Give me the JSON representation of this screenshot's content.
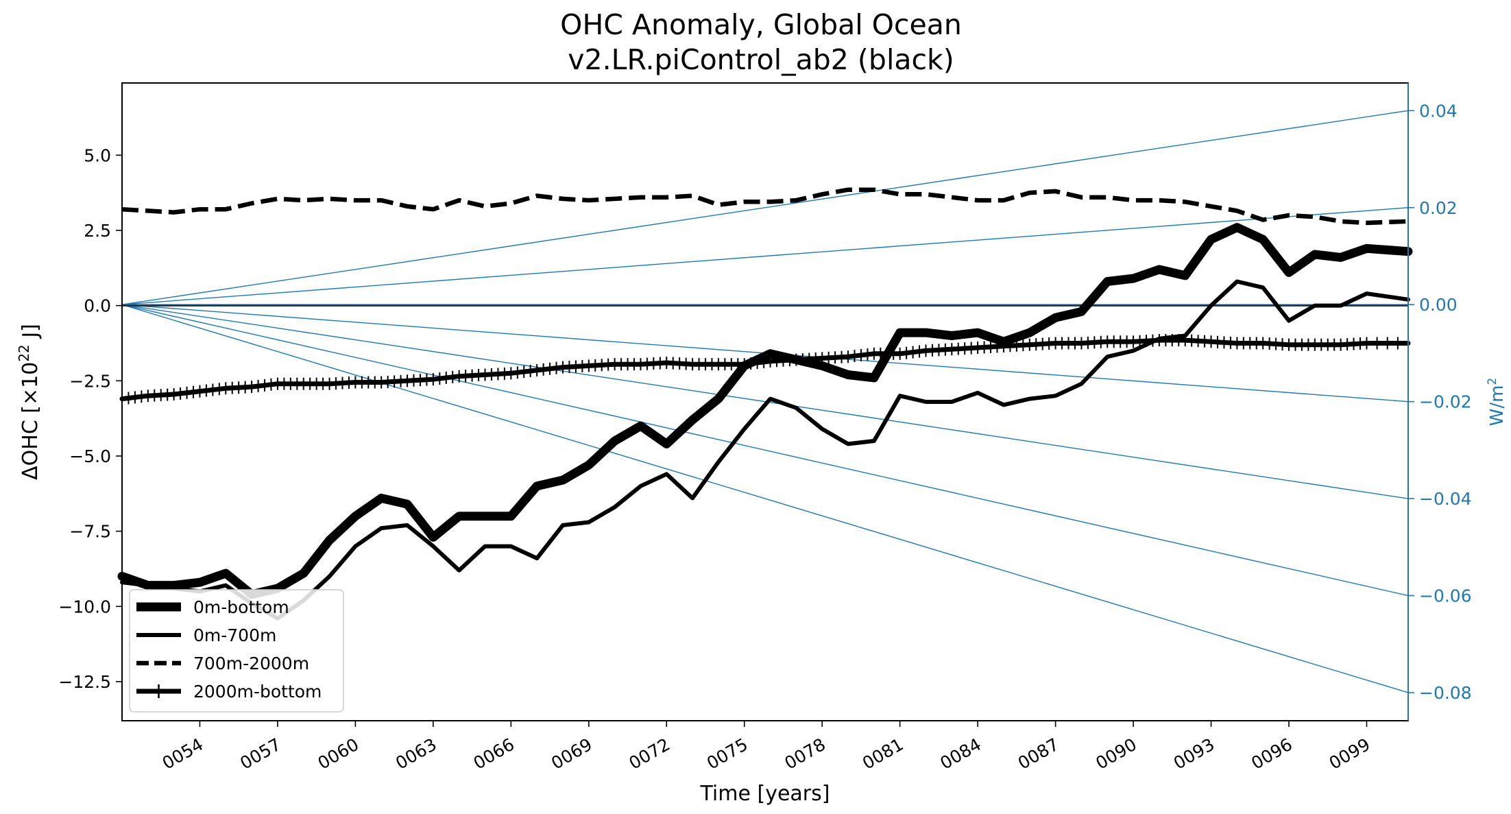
{
  "chart_data": {
    "type": "line",
    "title_line1": "OHC Anomaly, Global Ocean",
    "title_line2": "v2.LR.piControl_ab2 (black)",
    "xlabel": "Time [years]",
    "ylabel": "ΔOHC [×10",
    "ylabel_exp": "22",
    "ylabel_unit": " J]",
    "ylabel_right": "W/m",
    "ylabel_right_exp": "2",
    "xlim": [
      51.0,
      100.6
    ],
    "ylim": [
      -13.8,
      7.4
    ],
    "ylim_right": [
      -0.0858,
      0.0457
    ],
    "grid": false,
    "legend_position": "lower-left",
    "x_ticks": [
      {
        "value": 54,
        "label": "0054"
      },
      {
        "value": 57,
        "label": "0057"
      },
      {
        "value": 60,
        "label": "0060"
      },
      {
        "value": 63,
        "label": "0063"
      },
      {
        "value": 66,
        "label": "0066"
      },
      {
        "value": 69,
        "label": "0069"
      },
      {
        "value": 72,
        "label": "0072"
      },
      {
        "value": 75,
        "label": "0075"
      },
      {
        "value": 78,
        "label": "0078"
      },
      {
        "value": 81,
        "label": "0081"
      },
      {
        "value": 84,
        "label": "0084"
      },
      {
        "value": 87,
        "label": "0087"
      },
      {
        "value": 90,
        "label": "0090"
      },
      {
        "value": 93,
        "label": "0093"
      },
      {
        "value": 96,
        "label": "0096"
      },
      {
        "value": 99,
        "label": "0099"
      }
    ],
    "y_ticks": [
      {
        "value": 5.0,
        "label": "5.0"
      },
      {
        "value": 2.5,
        "label": "2.5"
      },
      {
        "value": 0.0,
        "label": "0.0"
      },
      {
        "value": -2.5,
        "label": "−2.5"
      },
      {
        "value": -5.0,
        "label": "−5.0"
      },
      {
        "value": -7.5,
        "label": "−7.5"
      },
      {
        "value": -10.0,
        "label": "−10.0"
      },
      {
        "value": -12.5,
        "label": "−12.5"
      }
    ],
    "y_ticks_right": [
      {
        "value": 0.04,
        "label": "0.04"
      },
      {
        "value": 0.02,
        "label": "0.02"
      },
      {
        "value": 0.0,
        "label": "0.00"
      },
      {
        "value": -0.02,
        "label": "−0.02"
      },
      {
        "value": -0.04,
        "label": "−0.04"
      },
      {
        "value": -0.06,
        "label": "−0.06"
      },
      {
        "value": -0.08,
        "label": "−0.08"
      }
    ],
    "reference_lines": {
      "color": "#1f77b4",
      "origin_x": 51.0,
      "end_x": 100.6,
      "end_values_right_axis": [
        0.04,
        0.02,
        0.0,
        -0.02,
        -0.04,
        -0.06,
        -0.08
      ]
    },
    "series": [
      {
        "name": "0m-bottom",
        "color": "#000000",
        "style": "thick",
        "x": [
          51,
          52,
          53,
          54,
          55,
          56,
          57,
          58,
          59,
          60,
          61,
          62,
          63,
          64,
          65,
          66,
          67,
          68,
          69,
          70,
          71,
          72,
          73,
          74,
          75,
          76,
          77,
          78,
          79,
          80,
          81,
          82,
          83,
          84,
          85,
          86,
          87,
          88,
          89,
          90,
          91,
          92,
          93,
          94,
          95,
          96,
          97,
          98,
          99,
          100.6
        ],
        "y": [
          -9.0,
          -9.3,
          -9.3,
          -9.2,
          -8.9,
          -9.6,
          -9.4,
          -8.9,
          -7.8,
          -7.0,
          -6.4,
          -6.6,
          -7.7,
          -7.0,
          -7.0,
          -7.0,
          -6.0,
          -5.8,
          -5.3,
          -4.5,
          -4.0,
          -4.6,
          -3.8,
          -3.1,
          -2.0,
          -1.6,
          -1.8,
          -2.0,
          -2.3,
          -2.4,
          -0.9,
          -0.9,
          -1.0,
          -0.9,
          -1.2,
          -0.9,
          -0.4,
          -0.2,
          0.8,
          0.9,
          1.2,
          1.0,
          2.2,
          2.6,
          2.2,
          1.1,
          1.7,
          1.6,
          1.9,
          1.8
        ]
      },
      {
        "name": "0m-700m",
        "color": "#000000",
        "style": "solid",
        "x": [
          51,
          52,
          53,
          54,
          55,
          56,
          57,
          58,
          59,
          60,
          61,
          62,
          63,
          64,
          65,
          66,
          67,
          68,
          69,
          70,
          71,
          72,
          73,
          74,
          75,
          76,
          77,
          78,
          79,
          80,
          81,
          82,
          83,
          84,
          85,
          86,
          87,
          88,
          89,
          90,
          91,
          92,
          93,
          94,
          95,
          96,
          97,
          98,
          99,
          100.6
        ],
        "y": [
          -9.2,
          -9.3,
          -9.4,
          -9.5,
          -9.3,
          -9.9,
          -10.4,
          -9.8,
          -9.0,
          -8.0,
          -7.4,
          -7.3,
          -8.0,
          -8.8,
          -8.0,
          -8.0,
          -8.4,
          -7.3,
          -7.2,
          -6.7,
          -6.0,
          -5.6,
          -6.4,
          -5.2,
          -4.1,
          -3.1,
          -3.4,
          -4.1,
          -4.6,
          -4.5,
          -3.0,
          -3.2,
          -3.2,
          -2.9,
          -3.3,
          -3.1,
          -3.0,
          -2.6,
          -1.7,
          -1.5,
          -1.1,
          -1.0,
          0.0,
          0.8,
          0.6,
          -0.5,
          0.0,
          0.0,
          0.4,
          0.2
        ]
      },
      {
        "name": "700m-2000m",
        "color": "#000000",
        "style": "dashed",
        "x": [
          51,
          52,
          53,
          54,
          55,
          56,
          57,
          58,
          59,
          60,
          61,
          62,
          63,
          64,
          65,
          66,
          67,
          68,
          69,
          70,
          71,
          72,
          73,
          74,
          75,
          76,
          77,
          78,
          79,
          80,
          81,
          82,
          83,
          84,
          85,
          86,
          87,
          88,
          89,
          90,
          91,
          92,
          93,
          94,
          95,
          96,
          97,
          98,
          99,
          100.6
        ],
        "y": [
          3.2,
          3.15,
          3.1,
          3.2,
          3.2,
          3.4,
          3.55,
          3.5,
          3.55,
          3.5,
          3.5,
          3.3,
          3.2,
          3.5,
          3.3,
          3.4,
          3.65,
          3.55,
          3.5,
          3.55,
          3.6,
          3.6,
          3.65,
          3.35,
          3.45,
          3.45,
          3.5,
          3.7,
          3.85,
          3.85,
          3.7,
          3.7,
          3.6,
          3.5,
          3.5,
          3.75,
          3.8,
          3.6,
          3.6,
          3.5,
          3.5,
          3.45,
          3.3,
          3.15,
          2.85,
          3.0,
          2.95,
          2.8,
          2.75,
          2.8
        ]
      },
      {
        "name": "2000m-bottom",
        "color": "#000000",
        "style": "plus-marked",
        "x": [
          51,
          52,
          53,
          54,
          55,
          56,
          57,
          58,
          59,
          60,
          61,
          62,
          63,
          64,
          65,
          66,
          67,
          68,
          69,
          70,
          71,
          72,
          73,
          74,
          75,
          76,
          77,
          78,
          79,
          80,
          81,
          82,
          83,
          84,
          85,
          86,
          87,
          88,
          89,
          90,
          91,
          92,
          93,
          94,
          95,
          96,
          97,
          98,
          99,
          100.6
        ],
        "y": [
          -3.1,
          -3.0,
          -2.95,
          -2.85,
          -2.75,
          -2.7,
          -2.6,
          -2.6,
          -2.6,
          -2.55,
          -2.55,
          -2.5,
          -2.45,
          -2.35,
          -2.3,
          -2.25,
          -2.15,
          -2.05,
          -2.0,
          -1.95,
          -1.95,
          -1.9,
          -1.95,
          -1.95,
          -1.95,
          -1.85,
          -1.8,
          -1.75,
          -1.7,
          -1.6,
          -1.6,
          -1.5,
          -1.45,
          -1.4,
          -1.35,
          -1.3,
          -1.25,
          -1.25,
          -1.2,
          -1.2,
          -1.15,
          -1.15,
          -1.2,
          -1.25,
          -1.25,
          -1.3,
          -1.3,
          -1.3,
          -1.25,
          -1.25
        ]
      }
    ]
  }
}
